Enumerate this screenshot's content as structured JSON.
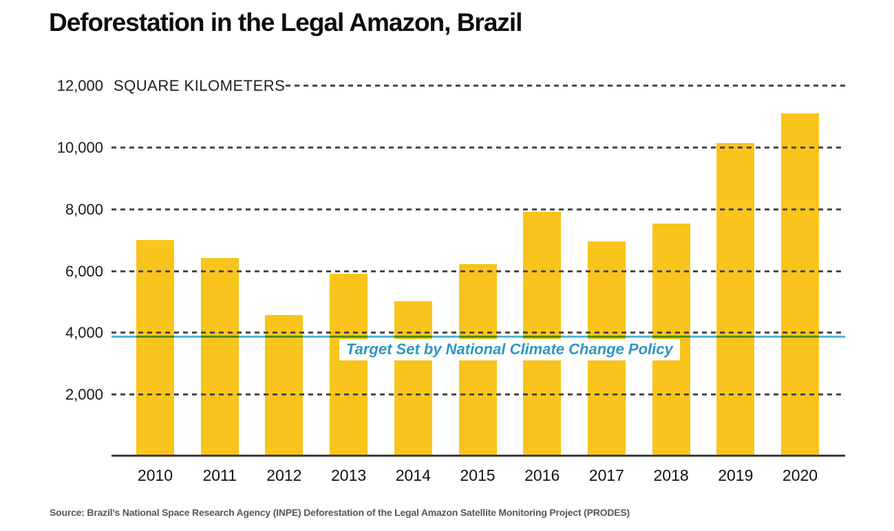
{
  "title": "Deforestation in the Legal Amazon, Brazil",
  "unit_label": "SQUARE KILOMETERS",
  "source": "Source: Brazil’s National Space Research Agency (INPE) Deforestation of the Legal Amazon Satellite Monitoring Project (PRODES)",
  "target_line": {
    "label": "Target Set by National Climate Change Policy",
    "value": 3925
  },
  "colors": {
    "bar": "#f9c41b",
    "target_line": "#55b3dc",
    "target_text": "#2d96c2",
    "gridline": "#4a4a4a",
    "axis": "#3c3c3c",
    "tick_text": "#1a1a1a",
    "source_text": "#565656"
  },
  "chart_data": {
    "type": "bar",
    "title": "Deforestation in the Legal Amazon, Brazil",
    "xlabel": "",
    "ylabel": "SQUARE KILOMETERS",
    "categories": [
      "2010",
      "2011",
      "2012",
      "2013",
      "2014",
      "2015",
      "2016",
      "2017",
      "2018",
      "2019",
      "2020"
    ],
    "values": [
      7000,
      6418,
      4571,
      5891,
      5012,
      6207,
      7893,
      6947,
      7536,
      10129,
      11088
    ],
    "ylim": [
      0,
      12000
    ],
    "ytick_values": [
      12000,
      10000,
      8000,
      6000,
      4000,
      2000
    ],
    "ytick_labels": [
      "12,000",
      "10,000",
      "8,000",
      "6,000",
      "4,000",
      "2,000"
    ],
    "grid": "horizontal-dashed",
    "legend": "none",
    "annotations": [
      {
        "type": "hline",
        "value": 3925,
        "text": "Target Set by National Climate Change Policy"
      }
    ]
  }
}
